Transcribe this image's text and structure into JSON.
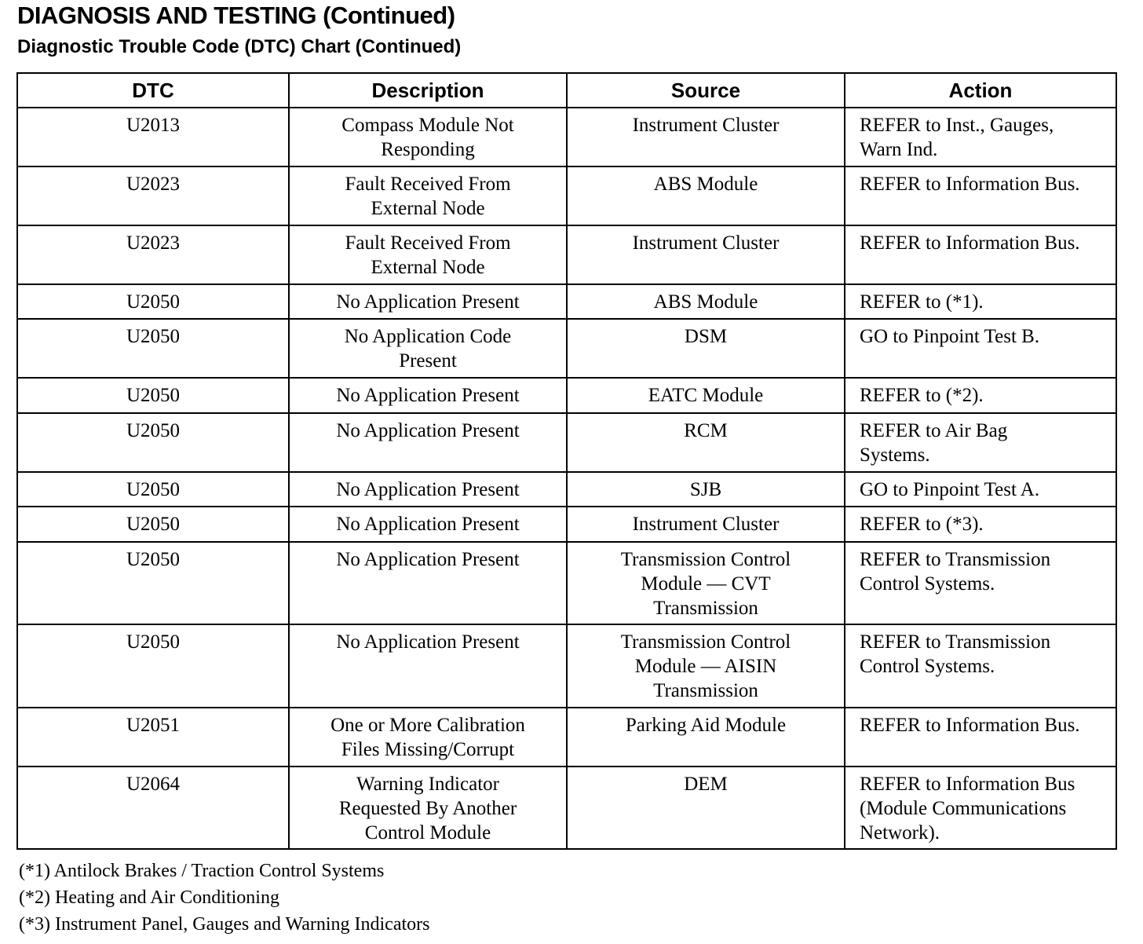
{
  "header": {
    "title": "DIAGNOSIS AND TESTING (Continued)",
    "subtitle": "Diagnostic Trouble Code (DTC) Chart (Continued)"
  },
  "table": {
    "columns": [
      "DTC",
      "Description",
      "Source",
      "Action"
    ],
    "rows": [
      {
        "dtc": "U2013",
        "description": "Compass Module Not\nResponding",
        "source": "Instrument Cluster",
        "action": "REFER to Inst., Gauges,\nWarn Ind."
      },
      {
        "dtc": "U2023",
        "description": "Fault Received From\nExternal Node",
        "source": "ABS Module",
        "action": "REFER to Information Bus."
      },
      {
        "dtc": "U2023",
        "description": "Fault Received From\nExternal Node",
        "source": "Instrument Cluster",
        "action": "REFER to Information Bus."
      },
      {
        "dtc": "U2050",
        "description": "No Application Present",
        "source": "ABS Module",
        "action": "REFER to (*1)."
      },
      {
        "dtc": "U2050",
        "description": "No Application Code\nPresent",
        "source": "DSM",
        "action": "GO to Pinpoint Test B."
      },
      {
        "dtc": "U2050",
        "description": "No Application Present",
        "source": "EATC Module",
        "action": "REFER to (*2)."
      },
      {
        "dtc": "U2050",
        "description": "No Application Present",
        "source": "RCM",
        "action": "REFER to Air Bag\nSystems."
      },
      {
        "dtc": "U2050",
        "description": "No Application Present",
        "source": "SJB",
        "action": "GO to Pinpoint Test A."
      },
      {
        "dtc": "U2050",
        "description": "No Application Present",
        "source": "Instrument Cluster",
        "action": "REFER to (*3)."
      },
      {
        "dtc": "U2050",
        "description": "No Application Present",
        "source": "Transmission Control\nModule — CVT\nTransmission",
        "action": "REFER to Transmission\nControl Systems."
      },
      {
        "dtc": "U2050",
        "description": "No Application Present",
        "source": "Transmission Control\nModule — AISIN\nTransmission",
        "action": "REFER to Transmission\nControl Systems."
      },
      {
        "dtc": "U2051",
        "description": "One or More Calibration\nFiles Missing/Corrupt",
        "source": "Parking Aid Module",
        "action": "REFER to Information Bus."
      },
      {
        "dtc": "U2064",
        "description": "Warning Indicator\nRequested By Another\nControl Module",
        "source": "DEM",
        "action": "REFER to Information Bus\n(Module Communications\nNetwork)."
      }
    ]
  },
  "footnotes": [
    "(*1) Antilock Brakes / Traction Control Systems",
    "(*2) Heating and Air Conditioning",
    "(*3) Instrument Panel, Gauges and Warning Indicators"
  ]
}
